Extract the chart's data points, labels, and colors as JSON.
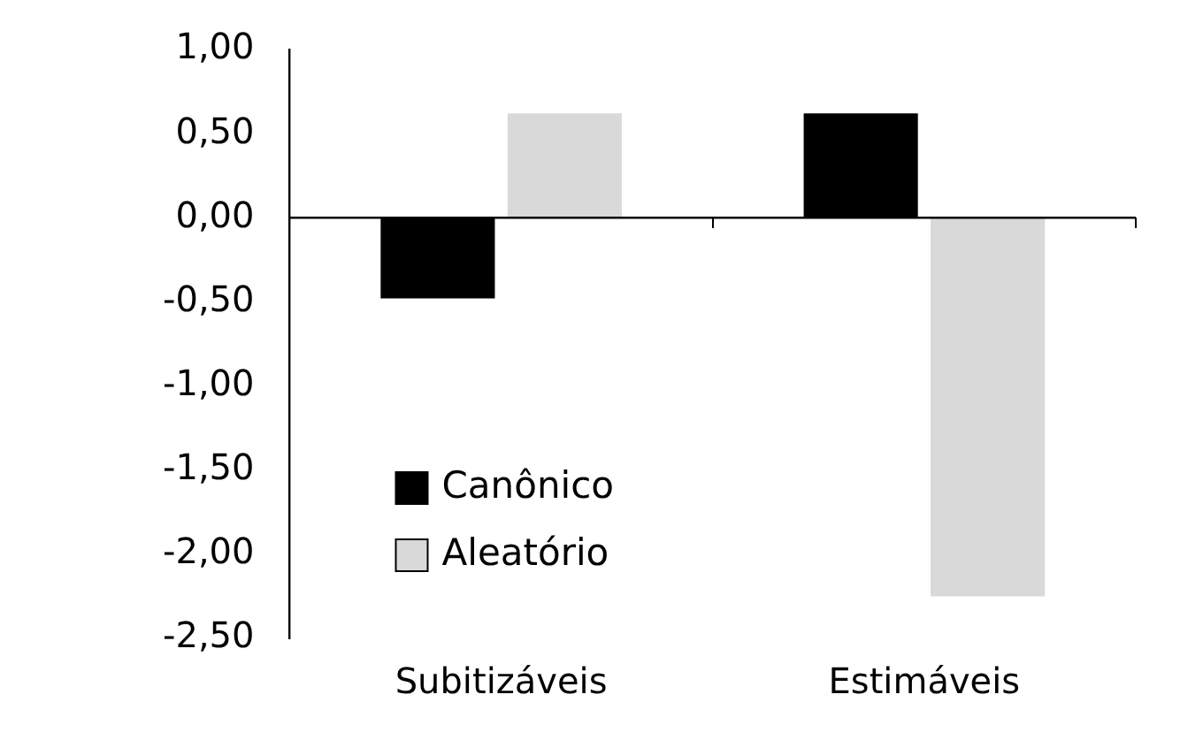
{
  "chart_data": {
    "type": "bar",
    "categories": [
      "Subitizáveis",
      "Estimáveis"
    ],
    "series": [
      {
        "name": "Canônico",
        "color": "#000000",
        "values": [
          -0.48,
          0.62
        ]
      },
      {
        "name": "Aleatório",
        "color": "#d9d9d9",
        "values": [
          0.62,
          -2.25
        ]
      }
    ],
    "ylim": [
      -2.5,
      1
    ],
    "yticks": [
      {
        "value": 1,
        "label": "1,00"
      },
      {
        "value": 0.5,
        "label": "0,50"
      },
      {
        "value": 0,
        "label": "0,00"
      },
      {
        "value": -0.5,
        "label": "-0,50"
      },
      {
        "value": -1,
        "label": "-1,00"
      },
      {
        "value": -1.5,
        "label": "-1,50"
      },
      {
        "value": -2,
        "label": "-2,00"
      },
      {
        "value": -2.5,
        "label": "-2,50"
      }
    ],
    "ref_lines": [
      {
        "axis": "y",
        "value": 0,
        "color": "#000000"
      }
    ],
    "grid": false,
    "legend": "bottom left"
  }
}
